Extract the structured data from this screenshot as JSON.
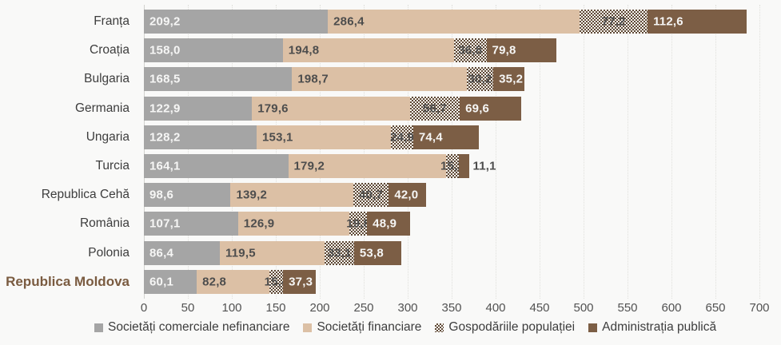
{
  "chart_data": {
    "type": "bar",
    "orientation": "horizontal",
    "stacked": true,
    "title": "",
    "xlabel": "",
    "ylabel": "",
    "xlim": [
      0,
      700
    ],
    "x_ticks": [
      0,
      50,
      100,
      150,
      200,
      250,
      300,
      350,
      400,
      450,
      500,
      550,
      600,
      650,
      700
    ],
    "grid": "vertical-dotted",
    "legend_position": "bottom",
    "value_label_format": "one-decimal-comma",
    "highlight_category": "Republica Moldova",
    "categories": [
      "Franța",
      "Croația",
      "Bulgaria",
      "Germania",
      "Ungaria",
      "Turcia",
      "Republica Cehă",
      "România",
      "Polonia",
      "Republica Moldova"
    ],
    "series": [
      {
        "name": "Societăți comerciale nefinanciare",
        "style": "solid",
        "color": "#a5a5a5",
        "label_color": "light",
        "values": [
          209.2,
          158.0,
          168.5,
          122.9,
          128.2,
          164.1,
          98.6,
          107.1,
          86.4,
          60.1
        ]
      },
      {
        "name": "Societăți financiare",
        "style": "solid",
        "color": "#dcc0a5",
        "label_color": "dark",
        "values": [
          286.4,
          194.8,
          198.7,
          179.6,
          153.1,
          179.2,
          139.2,
          126.9,
          119.5,
          82.8
        ]
      },
      {
        "name": "Gospodăriile populației",
        "style": "checker-hatch",
        "color": "#5d4836",
        "hatch_bg": "#faf7f1",
        "label_color": "dark",
        "values": [
          77.2,
          36.8,
          30.2,
          56.7,
          24.9,
          15.2,
          40.7,
          19.8,
          33.1,
          15.4
        ]
      },
      {
        "name": "Administrația publică",
        "style": "solid",
        "color": "#7c5e45",
        "label_color": "light",
        "values": [
          112.6,
          79.8,
          35.2,
          69.6,
          74.4,
          11.1,
          42.0,
          48.9,
          53.8,
          37.3
        ]
      }
    ],
    "colors": {
      "background": "#f9f9f8",
      "gridline": "#e0e0dc",
      "axis_line": "#d2d2ce",
      "tick_text": "#525252",
      "category_text": "#3d3d3d",
      "highlight_text": "#7a5b40",
      "value_text_light": "#f6f6f5",
      "value_text_dark": "#4d4d4d"
    }
  }
}
